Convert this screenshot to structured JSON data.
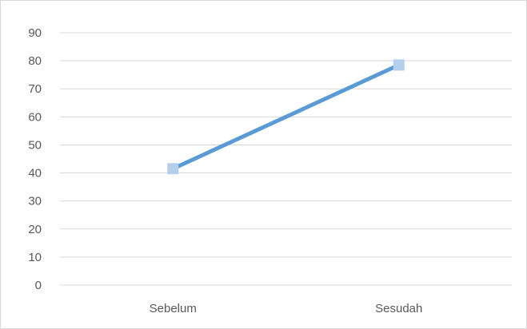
{
  "chart_data": {
    "type": "line",
    "categories": [
      "Sebelum",
      "Sesudah"
    ],
    "series": [
      {
        "values": [
          41.5,
          78.5
        ]
      }
    ],
    "title": "",
    "xlabel": "",
    "ylabel": "",
    "ylim": [
      0,
      90
    ],
    "yticks": [
      0,
      10,
      20,
      30,
      40,
      50,
      60,
      70,
      80,
      90
    ],
    "grid": true,
    "legend": "none",
    "colors": {
      "line": "#5b9bd5",
      "marker": "#b4cfec",
      "grid": "#d9d9d9",
      "text": "#595959"
    }
  }
}
